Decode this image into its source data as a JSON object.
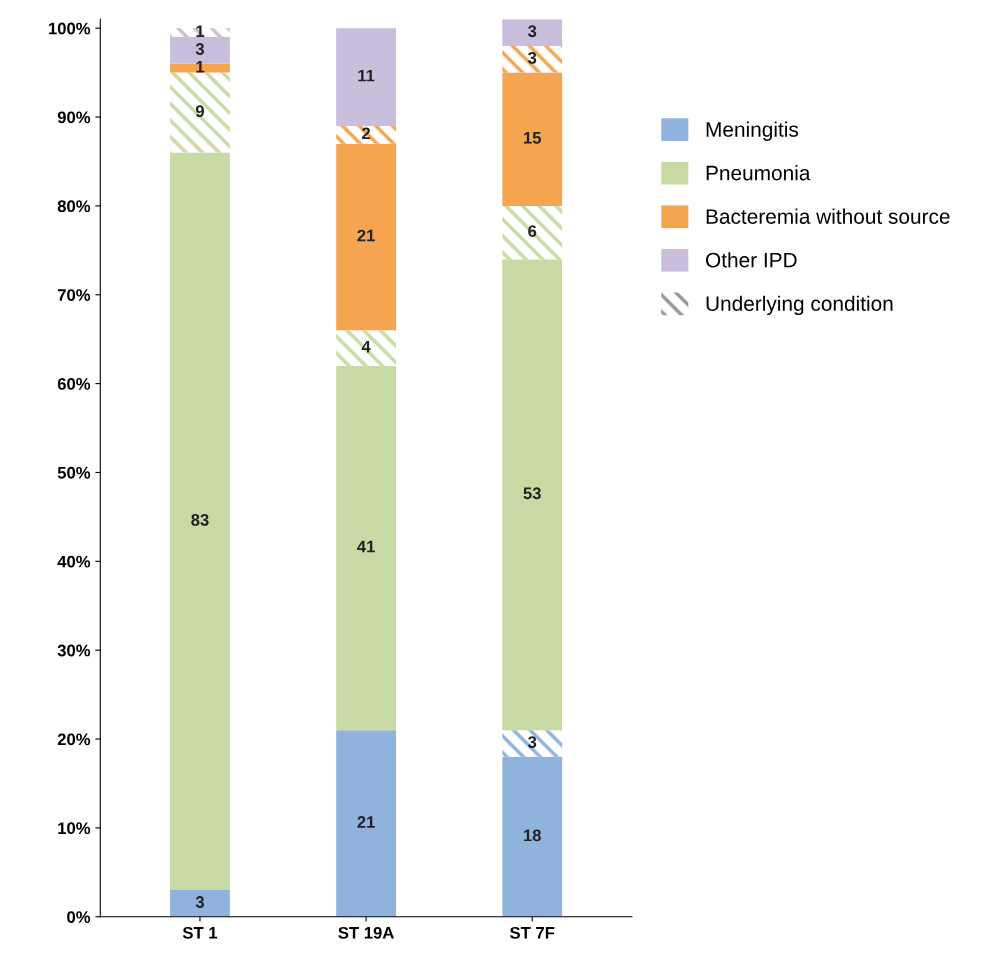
{
  "chart_data": {
    "type": "bar",
    "stacked": true,
    "categories": [
      "ST 1",
      "ST 19A",
      "ST 7F"
    ],
    "series": [
      {
        "name": "Meningitis",
        "color": "#8fb3dd",
        "values": [
          3,
          21,
          18
        ]
      },
      {
        "color": "#8fb3dd",
        "values": [
          null,
          null,
          3
        ]
      },
      {
        "name": "Pneumonia",
        "color": "#c8dba4",
        "values": [
          83,
          41,
          53
        ]
      },
      {
        "color": "#c8dba4",
        "values": [
          9,
          4,
          6
        ]
      },
      {
        "name": "Bacteremia without source",
        "color": "#f5a54f",
        "values": [
          1,
          21,
          15
        ]
      },
      {
        "color": "#f5a54f",
        "values": [
          null,
          2,
          3
        ]
      },
      {
        "name": "Other IPD",
        "color": "#c9bfdc",
        "values": [
          3,
          11,
          3
        ]
      },
      {
        "color": "#c9bfdc",
        "values": [
          1,
          null,
          null
        ]
      }
    ],
    "annotations": [
      "Underlying condition"
    ],
    "ylim": [
      0,
      101
    ],
    "yticks": [
      {
        "value": 0,
        "label": "0%"
      },
      {
        "value": 10,
        "label": "10%"
      },
      {
        "value": 20,
        "label": "20%"
      },
      {
        "value": 30,
        "label": "30%"
      },
      {
        "value": 40,
        "label": "40%"
      },
      {
        "value": 50,
        "label": "50%"
      },
      {
        "value": 60,
        "label": "60%"
      },
      {
        "value": 70,
        "label": "70%"
      },
      {
        "value": 80,
        "label": "80%"
      },
      {
        "value": 90,
        "label": "90%"
      },
      {
        "value": 100,
        "label": "100%"
      }
    ],
    "data_labels": true,
    "grid": false,
    "legend": "right"
  }
}
